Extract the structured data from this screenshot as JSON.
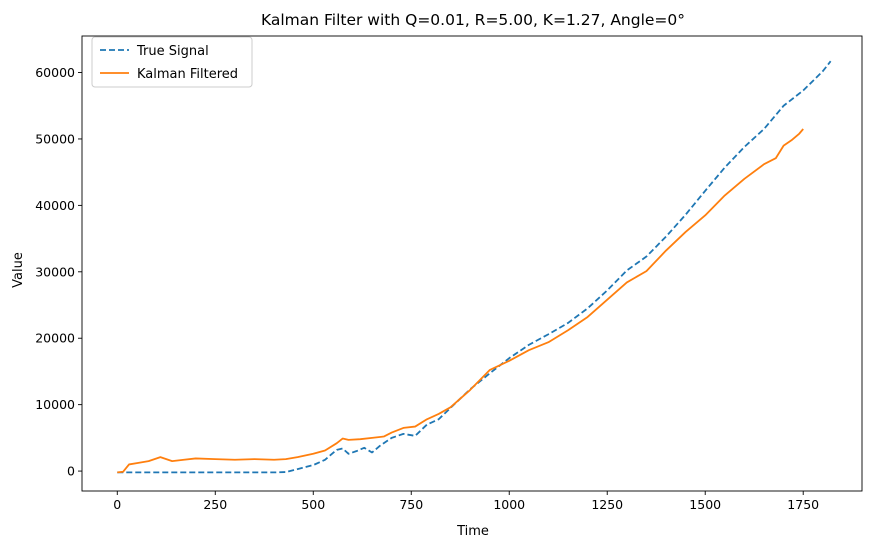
{
  "chart_data": {
    "type": "line",
    "title": "Kalman Filter with Q=0.01, R=5.00, K=1.27, Angle=0°",
    "xlabel": "Time",
    "ylabel": "Value",
    "xlim": [
      -90,
      1900
    ],
    "ylim": [
      -3000,
      65500
    ],
    "xticks": [
      0,
      250,
      500,
      750,
      1000,
      1250,
      1500,
      1750
    ],
    "yticks": [
      0,
      10000,
      20000,
      30000,
      40000,
      50000,
      60000
    ],
    "grid": false,
    "legend": "top-left",
    "series": [
      {
        "name": "True Signal",
        "color": "#1f77b4",
        "style": "dashed",
        "x": [
          0,
          50,
          100,
          200,
          300,
          400,
          430,
          460,
          500,
          530,
          560,
          575,
          590,
          610,
          630,
          650,
          670,
          700,
          730,
          760,
          790,
          820,
          850,
          900,
          950,
          1000,
          1050,
          1100,
          1150,
          1200,
          1250,
          1300,
          1350,
          1400,
          1450,
          1500,
          1550,
          1600,
          1650,
          1700,
          1750,
          1800,
          1820
        ],
        "y": [
          -200,
          -200,
          -200,
          -200,
          -200,
          -200,
          -150,
          300,
          900,
          1700,
          3200,
          3400,
          2600,
          3000,
          3500,
          2800,
          3800,
          5000,
          5600,
          5300,
          7000,
          7800,
          9500,
          12300,
          14700,
          17000,
          19000,
          20600,
          22300,
          24500,
          27200,
          30200,
          32300,
          35300,
          38600,
          42200,
          45700,
          48800,
          51500,
          55000,
          57300,
          60200,
          61700
        ]
      },
      {
        "name": "Kalman Filtered",
        "color": "#ff7f0e",
        "style": "solid",
        "x": [
          0,
          15,
          30,
          50,
          80,
          110,
          140,
          170,
          200,
          250,
          300,
          350,
          400,
          430,
          460,
          500,
          530,
          560,
          575,
          590,
          620,
          650,
          680,
          700,
          730,
          760,
          790,
          820,
          850,
          900,
          950,
          1000,
          1050,
          1100,
          1150,
          1200,
          1250,
          1300,
          1350,
          1400,
          1450,
          1500,
          1550,
          1600,
          1650,
          1680,
          1700,
          1720,
          1740,
          1750
        ],
        "y": [
          -200,
          -100,
          1000,
          1200,
          1500,
          2100,
          1500,
          1700,
          1900,
          1800,
          1700,
          1800,
          1700,
          1800,
          2100,
          2600,
          3100,
          4200,
          4900,
          4700,
          4800,
          5000,
          5200,
          5800,
          6500,
          6700,
          7800,
          8600,
          9600,
          12200,
          15200,
          16600,
          18200,
          19400,
          21200,
          23200,
          25800,
          28400,
          30100,
          33200,
          36000,
          38500,
          41500,
          44000,
          46200,
          47100,
          49000,
          49800,
          50800,
          51500
        ]
      }
    ]
  }
}
